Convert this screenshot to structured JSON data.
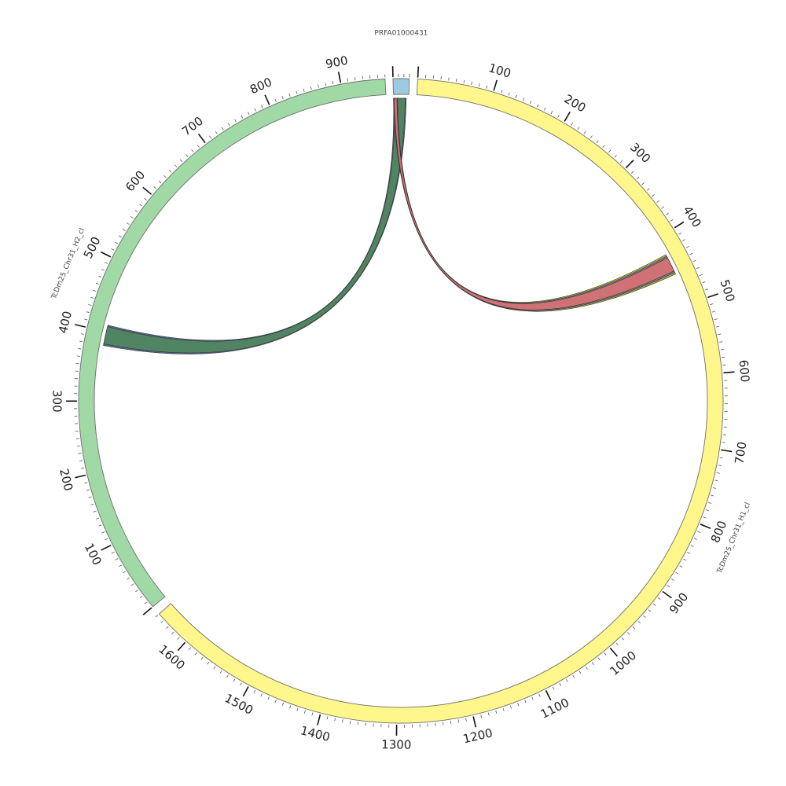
{
  "chart_data": {
    "type": "circos",
    "segments": [
      {
        "name": "TcDm25_Chr31_H1_cl",
        "color": "#fff68c",
        "start": 0,
        "end": 1650,
        "major_tick_step": 100,
        "minor_tick_step": 10
      },
      {
        "name": "TcDm25_Chr31_H2_cl",
        "color": "#a1d9a6",
        "start": 0,
        "end": 960,
        "major_tick_step": 100,
        "minor_tick_step": 10
      },
      {
        "name": "PRFA01000431",
        "color": "#9ecae1",
        "start": 0,
        "end": 30,
        "major_tick_step": 100,
        "minor_tick_step": 10
      }
    ],
    "links": [
      {
        "source": {
          "segment": "PRFA01000431",
          "start": 0,
          "end": 25
        },
        "target": {
          "segment": "TcDm25_Chr31_H2_cl",
          "start": 380,
          "end": 410
        },
        "colors": [
          "#5a668e",
          "#4f8a5c"
        ]
      },
      {
        "source": {
          "segment": "PRFA01000431",
          "start": 0,
          "end": 8
        },
        "target": {
          "segment": "TcDm25_Chr31_H1_cl",
          "start": 425,
          "end": 455
        },
        "colors": [
          "#b5b33a",
          "#6b6fa3",
          "#e07070"
        ]
      }
    ]
  }
}
